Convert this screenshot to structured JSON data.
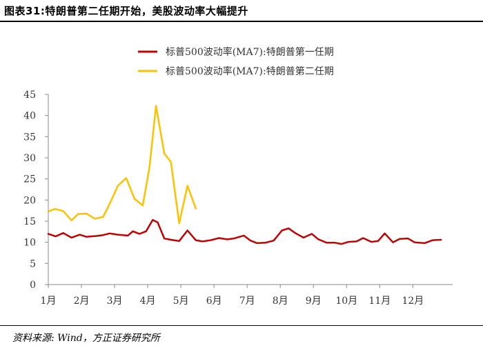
{
  "header": {
    "title": "图表31:特朗普第二任期开始，美股波动率大幅提升"
  },
  "footer": {
    "source": "资料来源: Wind，方正证券研究所"
  },
  "chart_data": {
    "type": "line",
    "title": "",
    "xlabel": "",
    "ylabel": "",
    "x_tick_labels": [
      "1月",
      "2月",
      "3月",
      "4月",
      "5月",
      "6月",
      "7月",
      "8月",
      "9月",
      "10月",
      "11月",
      "12月"
    ],
    "y_ticks": [
      0,
      5,
      10,
      15,
      20,
      25,
      30,
      35,
      40,
      45
    ],
    "ylim": [
      0,
      45
    ],
    "xlim": [
      1,
      13.2
    ],
    "grid": false,
    "legend_position": "top-center",
    "series": [
      {
        "name": "标普500波动率(MA7):特朗普第一任期",
        "color": "#c00000",
        "x": [
          1.0,
          1.22,
          1.45,
          1.7,
          1.95,
          2.15,
          2.45,
          2.65,
          2.85,
          3.1,
          3.4,
          3.55,
          3.75,
          3.95,
          4.15,
          4.3,
          4.5,
          4.7,
          4.95,
          5.2,
          5.45,
          5.65,
          5.9,
          6.15,
          6.4,
          6.6,
          6.9,
          7.1,
          7.3,
          7.55,
          7.8,
          8.05,
          8.25,
          8.45,
          8.7,
          8.95,
          9.15,
          9.4,
          9.65,
          9.85,
          10.05,
          10.3,
          10.5,
          10.75,
          10.95,
          11.15,
          11.4,
          11.6,
          11.85,
          12.05,
          12.35,
          12.6,
          12.85
        ],
        "values": [
          12.0,
          11.4,
          12.2,
          11.1,
          11.8,
          11.3,
          11.5,
          11.7,
          12.1,
          11.8,
          11.6,
          12.6,
          12.0,
          12.6,
          15.3,
          14.7,
          10.9,
          10.6,
          10.3,
          12.8,
          10.5,
          10.2,
          10.5,
          11.0,
          10.7,
          10.9,
          11.6,
          10.4,
          9.8,
          9.9,
          10.4,
          12.8,
          13.3,
          12.2,
          11.1,
          12.0,
          10.7,
          9.9,
          9.9,
          9.6,
          10.1,
          10.2,
          11.0,
          10.1,
          10.3,
          12.1,
          10.0,
          10.8,
          10.9,
          10.0,
          9.8,
          10.5,
          10.6
        ]
      },
      {
        "name": "标普500波动率(MA7):特朗普第二任期",
        "color": "#ffc000",
        "x": [
          1.0,
          1.2,
          1.45,
          1.7,
          1.9,
          2.15,
          2.4,
          2.65,
          2.85,
          3.1,
          3.35,
          3.6,
          3.85,
          4.05,
          4.25,
          4.5,
          4.7,
          4.95,
          5.2,
          5.45
        ],
        "values": [
          17.3,
          17.9,
          17.4,
          15.2,
          16.7,
          16.8,
          15.6,
          16.0,
          19.1,
          23.4,
          25.2,
          20.3,
          18.7,
          27.6,
          42.3,
          31.0,
          29.0,
          14.5,
          23.4,
          18.0
        ]
      }
    ]
  }
}
